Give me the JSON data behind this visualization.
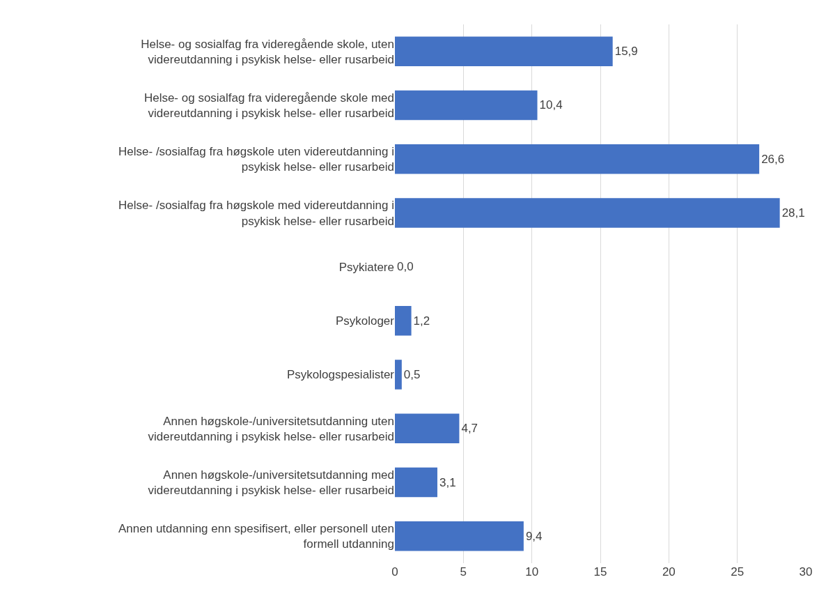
{
  "chart_data": {
    "type": "bar",
    "orientation": "horizontal",
    "categories": [
      "Helse- og sosialfag fra videregående skole, uten videreutdanning i psykisk helse- eller rusarbeid",
      "Helse- og sosialfag fra videregående skole med videreutdanning i psykisk helse- eller rusarbeid",
      "Helse- /sosialfag fra høgskole uten videreutdanning i psykisk helse- eller rusarbeid",
      "Helse- /sosialfag fra høgskole med videreutdanning i psykisk helse- eller rusarbeid",
      "Psykiatere",
      "Psykologer",
      "Psykologspesialister",
      "Annen høgskole-/universitetsutdanning uten videreutdanning i psykisk helse- eller rusarbeid",
      "Annen høgskole-/universitetsutdanning med videreutdanning i psykisk helse- eller rusarbeid",
      "Annen utdanning enn spesifisert, eller personell uten formell utdanning"
    ],
    "values": [
      15.9,
      10.4,
      26.6,
      28.1,
      0.0,
      1.2,
      0.5,
      4.7,
      3.1,
      9.4
    ],
    "value_labels": [
      "15,9",
      "10,4",
      "26,6",
      "28,1",
      "0,0",
      "1,2",
      "0,5",
      "4,7",
      "3,1",
      "9,4"
    ],
    "color": "#4472c4",
    "xlim": [
      0,
      30
    ],
    "xticks": [
      0,
      5,
      10,
      15,
      20,
      25,
      30
    ],
    "grid": "x"
  }
}
